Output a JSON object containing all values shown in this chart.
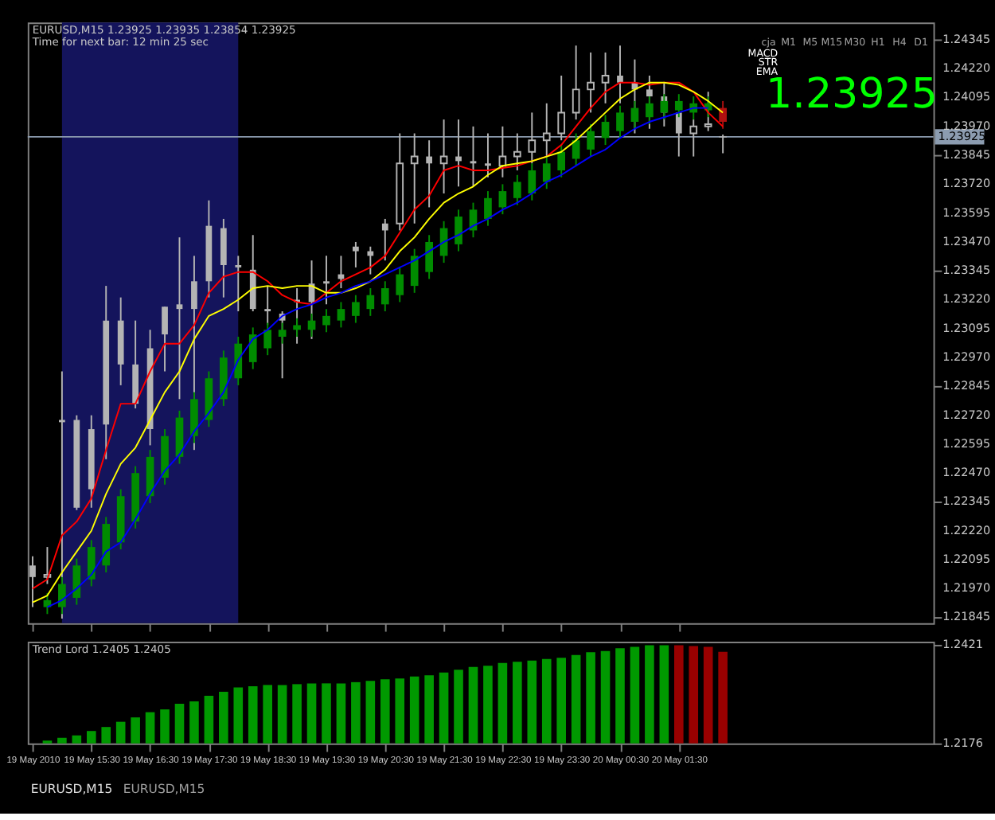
{
  "chart_data": [
    {
      "type": "candlestick",
      "title": "EURUSD,M15  1.23925 1.23935 1.23854 1.23925",
      "subtitle": "Time for next bar: 12 min 25 sec",
      "x": [
        "2010-05-19T14:30",
        "2010-05-19T14:45",
        "2010-05-19T15:00",
        "2010-05-19T15:15",
        "2010-05-19T15:30",
        "2010-05-19T15:45",
        "2010-05-19T16:00",
        "2010-05-19T16:15",
        "2010-05-19T16:30",
        "2010-05-19T16:45",
        "2010-05-19T17:00",
        "2010-05-19T17:15",
        "2010-05-19T17:30",
        "2010-05-19T17:45",
        "2010-05-19T18:00",
        "2010-05-19T18:15",
        "2010-05-19T18:30",
        "2010-05-19T18:45",
        "2010-05-19T19:00",
        "2010-05-19T19:15",
        "2010-05-19T19:30",
        "2010-05-19T19:45",
        "2010-05-19T20:00",
        "2010-05-19T20:15",
        "2010-05-19T20:30",
        "2010-05-19T20:45",
        "2010-05-19T21:00",
        "2010-05-19T21:15",
        "2010-05-19T21:30",
        "2010-05-19T21:45",
        "2010-05-19T22:00",
        "2010-05-19T22:15",
        "2010-05-19T22:30",
        "2010-05-19T22:45",
        "2010-05-19T23:00",
        "2010-05-19T23:15",
        "2010-05-19T23:30",
        "2010-05-19T23:45",
        "2010-05-20T00:00",
        "2010-05-20T00:15",
        "2010-05-20T00:30",
        "2010-05-20T00:45",
        "2010-05-20T01:00",
        "2010-05-20T01:15",
        "2010-05-20T01:30",
        "2010-05-20T01:45",
        "2010-05-20T02:00",
        "2010-05-20T02:15"
      ],
      "color": "#b4b4b4",
      "ohlc": [
        [
          1.2207,
          1.2211,
          1.2189,
          1.2202
        ],
        [
          1.2202,
          1.2215,
          1.2199,
          1.2203
        ],
        [
          1.227,
          1.2291,
          1.2184,
          1.2269
        ],
        [
          1.227,
          1.2272,
          1.2231,
          1.2232
        ],
        [
          1.2266,
          1.2272,
          1.2232,
          1.224
        ],
        [
          1.2313,
          1.2328,
          1.2253,
          1.2268
        ],
        [
          1.2313,
          1.2323,
          1.2285,
          1.2294
        ],
        [
          1.2294,
          1.2313,
          1.2275,
          1.2277
        ],
        [
          1.2301,
          1.2309,
          1.2259,
          1.2266
        ],
        [
          1.2319,
          1.2319,
          1.2291,
          1.2307
        ],
        [
          1.232,
          1.2349,
          1.2279,
          1.2318
        ],
        [
          1.233,
          1.2341,
          1.2257,
          1.2318
        ],
        [
          1.2354,
          1.2365,
          1.2323,
          1.233
        ],
        [
          1.2353,
          1.2357,
          1.2323,
          1.2337
        ],
        [
          1.2337,
          1.2341,
          1.2317,
          1.2336
        ],
        [
          1.2335,
          1.235,
          1.2317,
          1.2318
        ],
        [
          1.2318,
          1.2328,
          1.2311,
          1.2317
        ],
        [
          1.2316,
          1.2317,
          1.2288,
          1.2313
        ],
        [
          1.2322,
          1.2327,
          1.2303,
          1.2321
        ],
        [
          1.2329,
          1.2339,
          1.2305,
          1.2321
        ],
        [
          1.233,
          1.2341,
          1.232,
          1.2329
        ],
        [
          1.2333,
          1.2341,
          1.2327,
          1.2331
        ],
        [
          1.2345,
          1.2347,
          1.2336,
          1.2343
        ],
        [
          1.2343,
          1.2345,
          1.2333,
          1.2341
        ],
        [
          1.2355,
          1.2357,
          1.2339,
          1.2352
        ],
        [
          1.2355,
          1.2394,
          1.2352,
          1.2381
        ],
        [
          1.2381,
          1.2394,
          1.2355,
          1.2384
        ],
        [
          1.2384,
          1.2391,
          1.2362,
          1.2381
        ],
        [
          1.2381,
          1.24,
          1.2368,
          1.2384
        ],
        [
          1.2384,
          1.24,
          1.2371,
          1.2382
        ],
        [
          1.2382,
          1.2397,
          1.2371,
          1.2381
        ],
        [
          1.2381,
          1.2394,
          1.2375,
          1.238
        ],
        [
          1.238,
          1.2397,
          1.2375,
          1.2384
        ],
        [
          1.2384,
          1.2394,
          1.2378,
          1.2386
        ],
        [
          1.2386,
          1.2403,
          1.2381,
          1.2391
        ],
        [
          1.2391,
          1.2407,
          1.2384,
          1.2394
        ],
        [
          1.2394,
          1.2419,
          1.2391,
          1.2403
        ],
        [
          1.2403,
          1.2432,
          1.24,
          1.2413
        ],
        [
          1.2413,
          1.2429,
          1.2403,
          1.2416
        ],
        [
          1.2416,
          1.2429,
          1.2407,
          1.2419
        ],
        [
          1.2419,
          1.2432,
          1.2407,
          1.2416
        ],
        [
          1.2416,
          1.2426,
          1.2394,
          1.2413
        ],
        [
          1.2413,
          1.2419,
          1.2396,
          1.241
        ],
        [
          1.241,
          1.2416,
          1.2397,
          1.2403
        ],
        [
          1.2403,
          1.2403,
          1.2384,
          1.2394
        ],
        [
          1.2394,
          1.24,
          1.2384,
          1.2397
        ],
        [
          1.2397,
          1.2412,
          1.2395,
          1.2398
        ],
        [
          1.23925,
          1.23935,
          1.23854,
          1.23925
        ]
      ],
      "series": [
        {
          "type": "line",
          "color": "#ff0000",
          "values": [
            1.2197,
            1.2201,
            1.222,
            1.2226,
            1.2236,
            1.2257,
            1.2277,
            1.2277,
            1.2291,
            1.2303,
            1.2303,
            1.2311,
            1.2325,
            1.2332,
            1.2334,
            1.2334,
            1.233,
            1.2324,
            1.2321,
            1.232,
            1.2325,
            1.233,
            1.2333,
            1.2336,
            1.2341,
            1.2351,
            1.2361,
            1.2367,
            1.2378,
            1.238,
            1.2378,
            1.2378,
            1.2379,
            1.238,
            1.2382,
            1.2384,
            1.2389,
            1.2397,
            1.2405,
            1.2412,
            1.2416,
            1.2416,
            1.2415,
            1.2416,
            1.2416,
            1.2412,
            1.2403,
            1.2397
          ]
        },
        {
          "type": "line",
          "color": "#ffff00",
          "values": [
            1.2191,
            1.2194,
            1.2204,
            1.2213,
            1.2222,
            1.2238,
            1.2251,
            1.2258,
            1.227,
            1.2282,
            1.2291,
            1.2305,
            1.2315,
            1.2318,
            1.2322,
            1.2327,
            1.2328,
            1.2327,
            1.2328,
            1.2328,
            1.2325,
            1.2325,
            1.2327,
            1.233,
            1.2335,
            1.2343,
            1.2349,
            1.2357,
            1.2364,
            1.2368,
            1.2371,
            1.2376,
            1.238,
            1.2381,
            1.2382,
            1.2384,
            1.2386,
            1.2391,
            1.2397,
            1.2403,
            1.2409,
            1.2413,
            1.2416,
            1.2416,
            1.2415,
            1.2412,
            1.2408,
            1.2403
          ]
        },
        {
          "type": "line",
          "color": "#0000ff",
          "values": [
            null,
            1.2189,
            1.2192,
            1.2197,
            1.2203,
            1.2213,
            1.2217,
            1.2227,
            1.2238,
            1.2248,
            1.2255,
            1.2265,
            1.2273,
            1.2282,
            1.2296,
            1.2305,
            1.2309,
            1.2315,
            1.2318,
            1.232,
            1.2323,
            1.2325,
            1.2328,
            1.233,
            1.2333,
            1.2336,
            1.2339,
            1.2343,
            1.2347,
            1.235,
            1.2354,
            1.2357,
            1.2361,
            1.2364,
            1.2368,
            1.2373,
            1.2376,
            1.238,
            1.2384,
            1.2387,
            1.2392,
            1.2396,
            1.2399,
            1.2401,
            1.2403,
            1.2405,
            1.2405,
            null
          ]
        },
        {
          "type": "candlestick",
          "colors": [
            null,
            "#008c00",
            "#008c00",
            "#008c00",
            "#008c00",
            "#008c00",
            "#008c00",
            "#008c00",
            "#008c00",
            "#008c00",
            "#008c00",
            "#008c00",
            "#008c00",
            "#008c00",
            "#008c00",
            "#008c00",
            "#008c00",
            "#008c00",
            "#008c00",
            "#008c00",
            "#008c00",
            "#008c00",
            "#008c00",
            "#008c00",
            "#008c00",
            "#008c00",
            "#008c00",
            "#008c00",
            "#008c00",
            "#008c00",
            "#008c00",
            "#008c00",
            "#008c00",
            "#008c00",
            "#008c00",
            "#008c00",
            "#008c00",
            "#008c00",
            "#008c00",
            "#008c00",
            "#008c00",
            "#008c00",
            "#008c00",
            "#008c00",
            "#008c00",
            "#008c00",
            "#008c00",
            "#b01010"
          ],
          "ohlc": [
            null,
            [
              1.2189,
              1.2195,
              1.2186,
              1.2192
            ],
            [
              1.2189,
              1.2202,
              1.2186,
              1.2199
            ],
            [
              1.2193,
              1.221,
              1.219,
              1.2207
            ],
            [
              1.2201,
              1.2218,
              1.2198,
              1.2215
            ],
            [
              1.2207,
              1.2228,
              1.2204,
              1.2225
            ],
            [
              1.2217,
              1.224,
              1.2214,
              1.2237
            ],
            [
              1.2226,
              1.225,
              1.2223,
              1.2247
            ],
            [
              1.2237,
              1.2257,
              1.2234,
              1.2254
            ],
            [
              1.2245,
              1.2266,
              1.2242,
              1.2263
            ],
            [
              1.2254,
              1.2274,
              1.2251,
              1.2271
            ],
            [
              1.2263,
              1.2282,
              1.226,
              1.2279
            ],
            [
              1.227,
              1.2291,
              1.2267,
              1.2288
            ],
            [
              1.2279,
              1.23,
              1.2276,
              1.2297
            ],
            [
              1.2288,
              1.2306,
              1.2285,
              1.2303
            ],
            [
              1.2295,
              1.231,
              1.2292,
              1.2307
            ],
            [
              1.2301,
              1.2312,
              1.2298,
              1.2309
            ],
            [
              1.2306,
              1.2312,
              1.2303,
              1.2309
            ],
            [
              1.2309,
              1.2314,
              1.2306,
              1.2311
            ],
            [
              1.2309,
              1.2316,
              1.2306,
              1.2313
            ],
            [
              1.2311,
              1.2318,
              1.2308,
              1.2315
            ],
            [
              1.2313,
              1.2321,
              1.231,
              1.2318
            ],
            [
              1.2315,
              1.2324,
              1.2312,
              1.2321
            ],
            [
              1.2318,
              1.2327,
              1.2315,
              1.2324
            ],
            [
              1.232,
              1.233,
              1.2317,
              1.2327
            ],
            [
              1.2324,
              1.2336,
              1.2321,
              1.2333
            ],
            [
              1.2328,
              1.2344,
              1.2325,
              1.2341
            ],
            [
              1.2334,
              1.235,
              1.2331,
              1.2347
            ],
            [
              1.2341,
              1.2356,
              1.2338,
              1.2353
            ],
            [
              1.2346,
              1.2361,
              1.2343,
              1.2358
            ],
            [
              1.2352,
              1.2364,
              1.2349,
              1.2361
            ],
            [
              1.2357,
              1.2369,
              1.2354,
              1.2366
            ],
            [
              1.2362,
              1.2372,
              1.2359,
              1.2369
            ],
            [
              1.2366,
              1.2376,
              1.2363,
              1.2373
            ],
            [
              1.2368,
              1.2381,
              1.2365,
              1.2378
            ],
            [
              1.2373,
              1.2384,
              1.237,
              1.2381
            ],
            [
              1.2378,
              1.2389,
              1.2375,
              1.2386
            ],
            [
              1.2383,
              1.2394,
              1.238,
              1.2391
            ],
            [
              1.2387,
              1.2398,
              1.2384,
              1.2395
            ],
            [
              1.2392,
              1.2402,
              1.2389,
              1.2399
            ],
            [
              1.2395,
              1.2406,
              1.2392,
              1.2403
            ],
            [
              1.2399,
              1.2408,
              1.2396,
              1.2405
            ],
            [
              1.2401,
              1.241,
              1.2398,
              1.2407
            ],
            [
              1.2403,
              1.2411,
              1.24,
              1.2408
            ],
            [
              1.2404,
              1.2411,
              1.2401,
              1.2408
            ],
            [
              1.2403,
              1.241,
              1.24,
              1.2407
            ],
            [
              1.2404,
              1.241,
              1.2401,
              1.2407
            ],
            [
              1.2405,
              1.2408,
              1.2396,
              1.2399
            ]
          ]
        }
      ],
      "xlim": [
        "2010-05-19T14:25",
        "2010-05-20T05:50"
      ],
      "xticks": [
        {
          "value": "2010-05-19T14:30",
          "label": null
        },
        {
          "value": "2010-05-19T15:30",
          "label": null
        },
        {
          "value": "2010-05-19T16:30",
          "label": null
        },
        {
          "value": "2010-05-19T17:30",
          "label": null
        },
        {
          "value": "2010-05-19T18:30",
          "label": null
        },
        {
          "value": "2010-05-19T19:30",
          "label": null
        },
        {
          "value": "2010-05-19T20:30",
          "label": null
        },
        {
          "value": "2010-05-19T21:30",
          "label": null
        },
        {
          "value": "2010-05-19T22:30",
          "label": null
        },
        {
          "value": "2010-05-19T23:30",
          "label": null
        },
        {
          "value": "2010-05-20T00:30",
          "label": null
        },
        {
          "value": "2010-05-20T01:30",
          "label": null
        }
      ],
      "ylim": [
        1.2182,
        1.2442
      ],
      "yticks": [
        1.24345,
        {
          "value": 1.2422,
          "label": "1.24220"
        },
        1.24095,
        {
          "value": 1.2397,
          "label": "1.23970"
        },
        1.23845,
        {
          "value": 1.2372,
          "label": "1.23720"
        },
        1.23595,
        {
          "value": 1.2347,
          "label": "1.23470"
        },
        1.23345,
        {
          "value": 1.2322,
          "label": "1.23220"
        },
        1.23095,
        {
          "value": 1.2297,
          "label": "1.22970"
        },
        1.22845,
        {
          "value": 1.2272,
          "label": "1.22720"
        },
        1.22595,
        {
          "value": 1.2247,
          "label": "1.22470"
        },
        1.22345,
        {
          "value": 1.2222,
          "label": "1.22220"
        },
        1.22095,
        {
          "value": 1.2197,
          "label": "1.21970"
        },
        1.21845
      ],
      "tick_labels": "y",
      "ref_lines": [
        {
          "axis": "y",
          "value": 1.23925,
          "label": "1.23925",
          "color": "#8c9cb0"
        }
      ],
      "bands": [
        {
          "axis": "x",
          "from": "2010-05-19T15:00",
          "to": "2010-05-19T18:00",
          "color": "#14145c"
        }
      ],
      "annotations": [
        "1.23925",
        "cja",
        "M1",
        "M5",
        "M15",
        "M30",
        "H1",
        "H4",
        "D1",
        "MACD",
        "STR",
        "EMA"
      ]
    },
    {
      "type": "bar",
      "title": "Trend Lord 1.2405 1.2405",
      "x": [
        "2010-05-19T14:45",
        "2010-05-19T15:00",
        "2010-05-19T15:15",
        "2010-05-19T15:30",
        "2010-05-19T15:45",
        "2010-05-19T16:00",
        "2010-05-19T16:15",
        "2010-05-19T16:30",
        "2010-05-19T16:45",
        "2010-05-19T17:00",
        "2010-05-19T17:15",
        "2010-05-19T17:30",
        "2010-05-19T17:45",
        "2010-05-19T18:00",
        "2010-05-19T18:15",
        "2010-05-19T18:30",
        "2010-05-19T18:45",
        "2010-05-19T19:00",
        "2010-05-19T19:15",
        "2010-05-19T19:30",
        "2010-05-19T19:45",
        "2010-05-19T20:00",
        "2010-05-19T20:15",
        "2010-05-19T20:30",
        "2010-05-19T20:45",
        "2010-05-19T21:00",
        "2010-05-19T21:15",
        "2010-05-19T21:30",
        "2010-05-19T21:45",
        "2010-05-19T22:00",
        "2010-05-19T22:15",
        "2010-05-19T22:30",
        "2010-05-19T22:45",
        "2010-05-19T23:00",
        "2010-05-19T23:15",
        "2010-05-19T23:30",
        "2010-05-19T23:45",
        "2010-05-20T00:00",
        "2010-05-20T00:15",
        "2010-05-20T00:30",
        "2010-05-20T00:45",
        "2010-05-20T01:00",
        "2010-05-20T01:15",
        "2010-05-20T01:30",
        "2010-05-20T01:45",
        "2010-05-20T02:00",
        "2010-05-20T02:15"
      ],
      "values": [
        1.2183,
        1.219,
        1.2196,
        1.2207,
        1.2217,
        1.223,
        1.2241,
        1.2254,
        1.2261,
        1.2275,
        1.2281,
        1.2295,
        1.2305,
        1.2316,
        1.2319,
        1.2322,
        1.2322,
        1.2324,
        1.2326,
        1.2326,
        1.2326,
        1.2329,
        1.2332,
        1.2336,
        1.2338,
        1.2343,
        1.2346,
        1.2353,
        1.236,
        1.2367,
        1.237,
        1.2377,
        1.238,
        1.2383,
        1.2387,
        1.239,
        1.2397,
        1.2404,
        1.2407,
        1.2414,
        1.2417,
        1.2421,
        1.2421,
        1.2421,
        1.2419,
        1.2417,
        1.2405
      ],
      "colors": [
        "#009900",
        "#009900",
        "#009900",
        "#009900",
        "#009900",
        "#009900",
        "#009900",
        "#009900",
        "#009900",
        "#009900",
        "#009900",
        "#009900",
        "#009900",
        "#009900",
        "#009900",
        "#009900",
        "#009900",
        "#009900",
        "#009900",
        "#009900",
        "#009900",
        "#009900",
        "#009900",
        "#009900",
        "#009900",
        "#009900",
        "#009900",
        "#009900",
        "#009900",
        "#009900",
        "#009900",
        "#009900",
        "#009900",
        "#009900",
        "#009900",
        "#009900",
        "#009900",
        "#009900",
        "#009900",
        "#009900",
        "#009900",
        "#009900",
        "#009900",
        "#990000",
        "#990000",
        "#990000",
        "#990000"
      ],
      "xlim": [
        "2010-05-19T14:25",
        "2010-05-20T05:50"
      ],
      "xticks": [
        {
          "value": "2010-05-19T14:30",
          "label": "19 May 2010"
        },
        {
          "value": "2010-05-19T15:30",
          "label": "19 May 15:30"
        },
        {
          "value": "2010-05-19T16:30",
          "label": "19 May 16:30"
        },
        {
          "value": "2010-05-19T17:30",
          "label": "19 May 17:30"
        },
        {
          "value": "2010-05-19T18:30",
          "label": "19 May 18:30"
        },
        {
          "value": "2010-05-19T19:30",
          "label": "19 May 19:30"
        },
        {
          "value": "2010-05-19T20:30",
          "label": "19 May 20:30"
        },
        {
          "value": "2010-05-19T21:30",
          "label": "19 May 21:30"
        },
        {
          "value": "2010-05-19T22:30",
          "label": "19 May 22:30"
        },
        {
          "value": "2010-05-19T23:30",
          "label": "19 May 23:30"
        },
        {
          "value": "2010-05-20T00:30",
          "label": "20 May 00:30"
        },
        {
          "value": "2010-05-20T01:30",
          "label": "20 May 01:30"
        }
      ],
      "ylim": [
        1.2176,
        1.243
      ],
      "yticks": [
        1.2421,
        1.2176
      ],
      "annotations": [
        "EURUSD,M15",
        "EURUSD,M15"
      ]
    }
  ]
}
